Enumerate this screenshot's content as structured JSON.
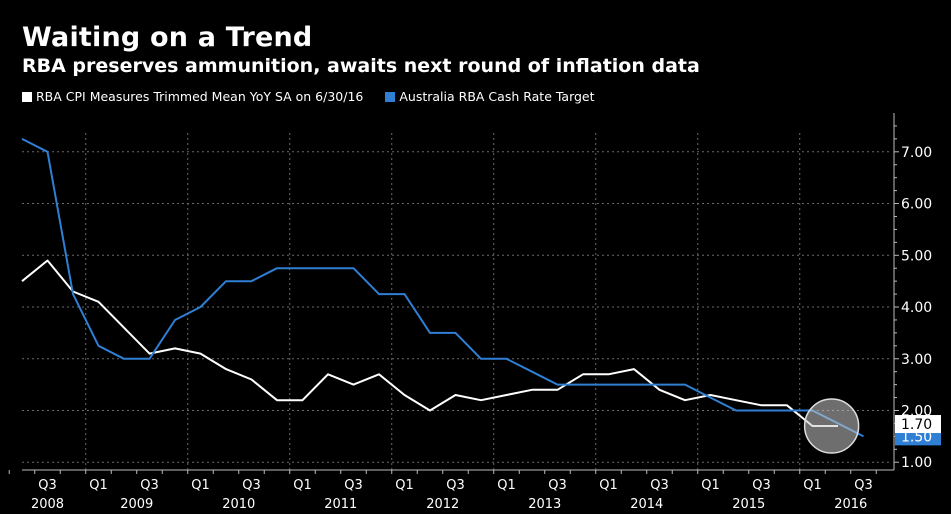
{
  "title": "Waiting on a Trend",
  "subtitle": "RBA preserves ammunition, awaits next round of inflation data",
  "chart_data": {
    "type": "line",
    "title": "Waiting on a Trend",
    "subtitle": "RBA preserves ammunition, awaits next round of inflation data",
    "legend_position": "top-left",
    "grid": true,
    "y_axis_side": "right",
    "ylim": [
      0.85,
      7.75
    ],
    "yticks": [
      "1.00",
      "2.00",
      "3.00",
      "4.00",
      "5.00",
      "6.00",
      "7.00"
    ],
    "xlim": [
      "2008-Q2",
      "2016-Q4"
    ],
    "x_tick_labels": [
      {
        "q": "Q3",
        "year": "2008"
      },
      {
        "q": "Q1",
        "year": "2009"
      },
      {
        "q": "Q3",
        "year": ""
      },
      {
        "q": "Q1",
        "year": "2010"
      },
      {
        "q": "Q3",
        "year": ""
      },
      {
        "q": "Q1",
        "year": "2011"
      },
      {
        "q": "Q3",
        "year": ""
      },
      {
        "q": "Q1",
        "year": "2012"
      },
      {
        "q": "Q3",
        "year": ""
      },
      {
        "q": "Q1",
        "year": "2013"
      },
      {
        "q": "Q3",
        "year": ""
      },
      {
        "q": "Q1",
        "year": "2014"
      },
      {
        "q": "Q3",
        "year": ""
      },
      {
        "q": "Q1",
        "year": "2015"
      },
      {
        "q": "Q3",
        "year": ""
      },
      {
        "q": "Q1",
        "year": "2016"
      },
      {
        "q": "Q3",
        "year": ""
      }
    ],
    "series": [
      {
        "name": "RBA CPI Measures Trimmed Mean YoY SA  on 6/30/16",
        "color": "#ffffff",
        "x": [
          "2008-Q2",
          "2008-Q3",
          "2008-Q4",
          "2009-Q1",
          "2009-Q2",
          "2009-Q3",
          "2009-Q4",
          "2010-Q1",
          "2010-Q2",
          "2010-Q3",
          "2010-Q4",
          "2011-Q1",
          "2011-Q2",
          "2011-Q3",
          "2011-Q4",
          "2012-Q1",
          "2012-Q2",
          "2012-Q3",
          "2012-Q4",
          "2013-Q1",
          "2013-Q2",
          "2013-Q3",
          "2013-Q4",
          "2014-Q1",
          "2014-Q2",
          "2014-Q3",
          "2014-Q4",
          "2015-Q1",
          "2015-Q2",
          "2015-Q3",
          "2015-Q4",
          "2016-Q1",
          "2016-Q2"
        ],
        "values": [
          4.5,
          4.9,
          4.3,
          4.1,
          3.6,
          3.1,
          3.2,
          3.1,
          2.8,
          2.6,
          2.2,
          2.2,
          2.7,
          2.5,
          2.7,
          2.3,
          2.0,
          2.3,
          2.2,
          2.3,
          2.4,
          2.4,
          2.7,
          2.7,
          2.8,
          2.4,
          2.2,
          2.3,
          2.2,
          2.1,
          2.1,
          1.7,
          1.7
        ],
        "last_value_label": "1.70"
      },
      {
        "name": "Australia RBA Cash Rate Target",
        "color": "#2f7fd4",
        "x": [
          "2008-Q2",
          "2008-Q3",
          "2008-Q4",
          "2009-Q1",
          "2009-Q2",
          "2009-Q3",
          "2009-Q4",
          "2010-Q1",
          "2010-Q2",
          "2010-Q3",
          "2010-Q4",
          "2011-Q1",
          "2011-Q2",
          "2011-Q3",
          "2011-Q4",
          "2012-Q1",
          "2012-Q2",
          "2012-Q3",
          "2012-Q4",
          "2013-Q1",
          "2013-Q2",
          "2013-Q3",
          "2013-Q4",
          "2014-Q1",
          "2014-Q2",
          "2014-Q3",
          "2014-Q4",
          "2015-Q1",
          "2015-Q2",
          "2015-Q3",
          "2015-Q4",
          "2016-Q1",
          "2016-Q2",
          "2016-Q3"
        ],
        "values": [
          7.25,
          7.0,
          4.25,
          3.25,
          3.0,
          3.0,
          3.75,
          4.0,
          4.5,
          4.5,
          4.75,
          4.75,
          4.75,
          4.75,
          4.25,
          4.25,
          3.5,
          3.5,
          3.0,
          3.0,
          2.75,
          2.5,
          2.5,
          2.5,
          2.5,
          2.5,
          2.5,
          2.25,
          2.0,
          2.0,
          2.0,
          2.0,
          1.75,
          1.5
        ],
        "last_value_label": "1.50"
      }
    ],
    "annotation": "highlight-circle"
  }
}
